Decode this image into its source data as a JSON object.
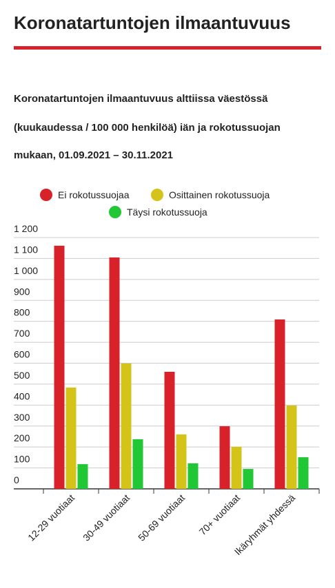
{
  "header": {
    "title": "Koronatartuntojen ilmaantuvuus"
  },
  "chart_data": {
    "type": "bar",
    "title": "Koronatartuntojen ilmaantuvuus alttiissa väestössä",
    "subtitle": "(kuukaudessa / 100 000 henkilöä) iän ja rokotussuojan",
    "subtitle2": "mukaan, 01.09.2021 – 30.11.2021",
    "categories": [
      "12-29 vuotiaat",
      "30-49 vuotiaat",
      "50-69 vuotiaat",
      "70+ vuotiaat",
      "Ikäryhmät yhdessä"
    ],
    "series": [
      {
        "name": "Ei rokotussuojaa",
        "color": "#d7222a",
        "values": [
          1161,
          1105,
          559,
          299,
          809
        ]
      },
      {
        "name": "Osittainen rokotussuoja",
        "color": "#d4c41a",
        "values": [
          484,
          599,
          260,
          201,
          398
        ]
      },
      {
        "name": "Täysi rokotussuoja",
        "color": "#22c736",
        "values": [
          118,
          237,
          122,
          95,
          151
        ]
      }
    ],
    "ylim": [
      0,
      1200
    ],
    "yticks": [
      0,
      100,
      200,
      300,
      400,
      500,
      600,
      700,
      800,
      900,
      {
        "value": 1000,
        "label": "1 000"
      },
      {
        "value": 1100,
        "label": "1 100"
      },
      {
        "value": 1200,
        "label": "1 200"
      }
    ],
    "grid": true
  }
}
